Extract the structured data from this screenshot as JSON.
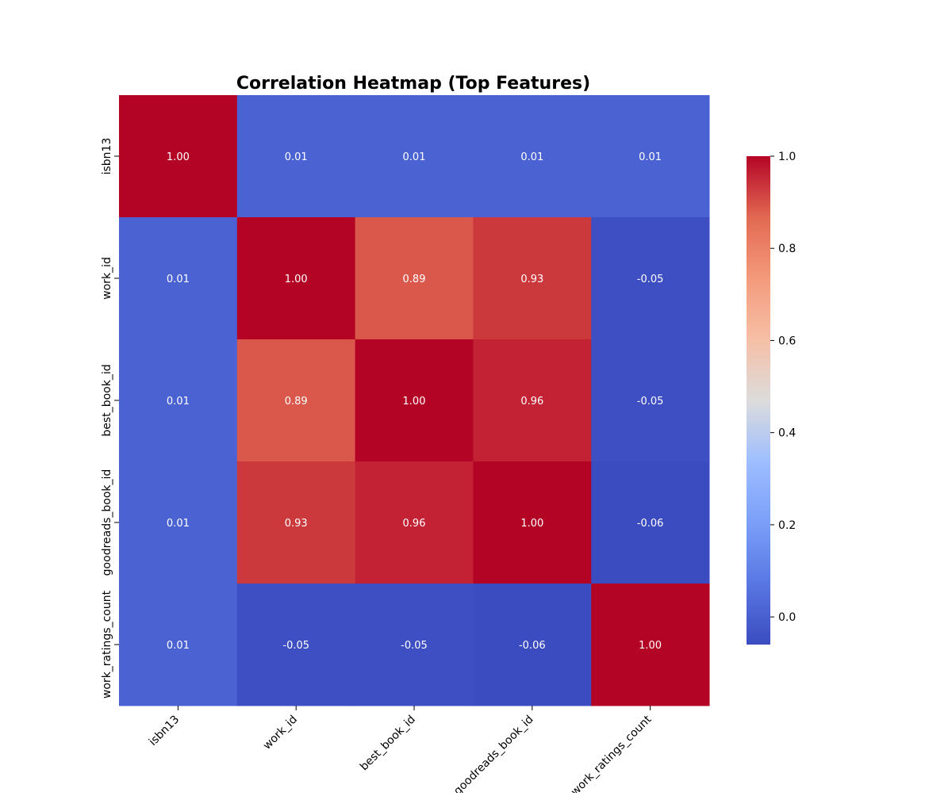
{
  "chart_data": {
    "type": "heatmap",
    "title": "Correlation Heatmap (Top Features)",
    "xlabel": "",
    "ylabel": "",
    "x_categories": [
      "isbn13",
      "work_id",
      "best_book_id",
      "goodreads_book_id",
      "work_ratings_count"
    ],
    "y_categories": [
      "isbn13",
      "work_id",
      "best_book_id",
      "goodreads_book_id",
      "work_ratings_count"
    ],
    "values": [
      [
        1.0,
        0.01,
        0.01,
        0.01,
        0.01
      ],
      [
        0.01,
        1.0,
        0.89,
        0.93,
        -0.05
      ],
      [
        0.01,
        0.89,
        1.0,
        0.96,
        -0.05
      ],
      [
        0.01,
        0.93,
        0.96,
        1.0,
        -0.06
      ],
      [
        0.01,
        -0.05,
        -0.05,
        -0.06,
        1.0
      ]
    ],
    "annotations": [
      [
        "1.00",
        "0.01",
        "0.01",
        "0.01",
        "0.01"
      ],
      [
        "0.01",
        "1.00",
        "0.89",
        "0.93",
        "-0.05"
      ],
      [
        "0.01",
        "0.89",
        "1.00",
        "0.96",
        "-0.05"
      ],
      [
        "0.01",
        "0.93",
        "0.96",
        "1.00",
        "-0.06"
      ],
      [
        "0.01",
        "-0.05",
        "-0.05",
        "-0.06",
        "1.00"
      ]
    ],
    "colormap": "coolwarm",
    "vmin": -0.06,
    "vmax": 1.0,
    "colorbar": {
      "ticks": [
        0.0,
        0.2,
        0.4,
        0.6,
        0.8,
        1.0
      ],
      "tick_labels": [
        "0.0",
        "0.2",
        "0.4",
        "0.6",
        "0.8",
        "1.0"
      ]
    },
    "colors": {
      "annotation_text": "#ffffff",
      "title_text": "#000000",
      "axis_text": "#000000"
    }
  }
}
